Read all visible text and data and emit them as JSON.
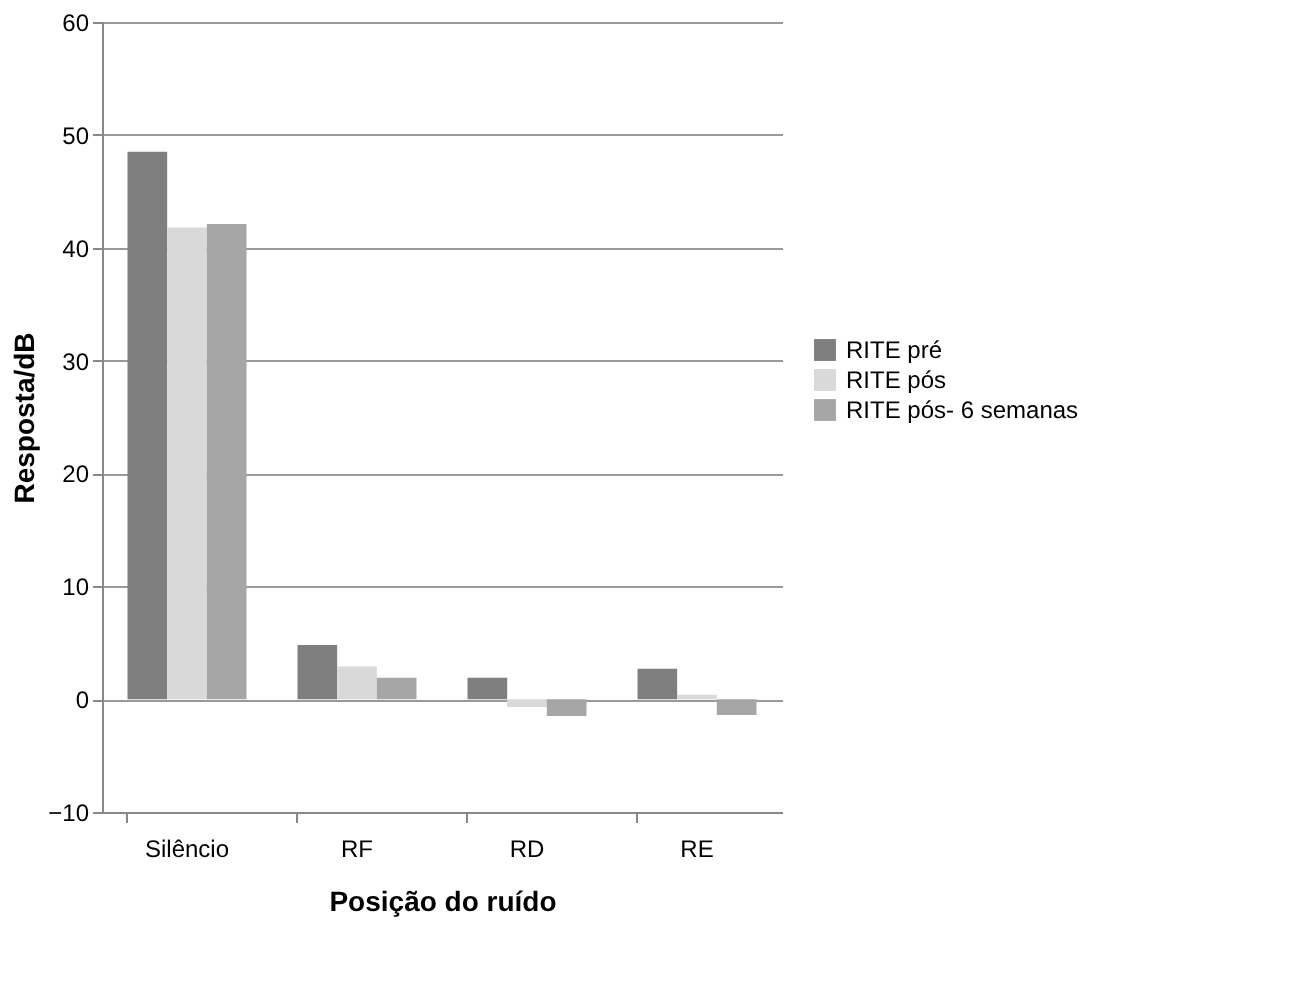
{
  "chart_data": {
    "type": "bar",
    "xlabel": "Posição do ruído",
    "ylabel": "Resposta/dB",
    "categories": [
      "Silêncio",
      "RF",
      "RD",
      "RE"
    ],
    "series": [
      {
        "name": "RITE pré",
        "color": "#7f7f7f",
        "values": [
          48.5,
          4.8,
          1.9,
          2.7
        ]
      },
      {
        "name": "RITE pós",
        "color": "#d9d9d9",
        "values": [
          41.8,
          2.9,
          -0.7,
          0.4
        ]
      },
      {
        "name": "RITE pós- 6 semanas",
        "color": "#a6a6a6",
        "values": [
          42.1,
          1.9,
          -1.5,
          -1.4
        ]
      }
    ],
    "ylim": [
      -10,
      60
    ],
    "yticks": [
      -10,
      0,
      10,
      20,
      30,
      40,
      50,
      60
    ],
    "grid": "y",
    "legend": "right"
  }
}
